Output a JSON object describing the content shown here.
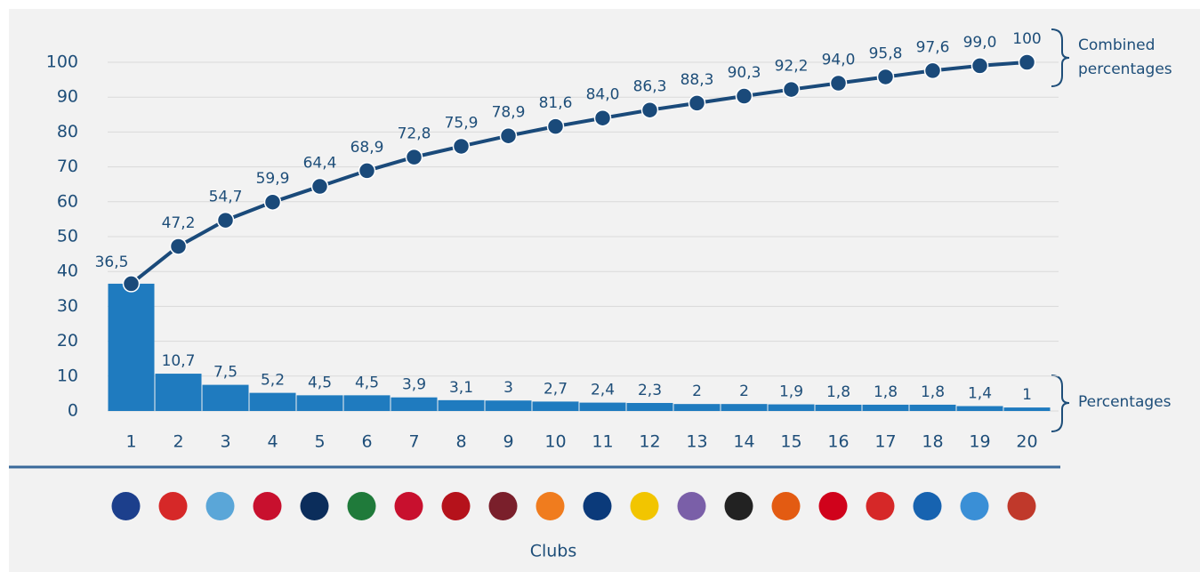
{
  "chart_data": {
    "type": "bar_line",
    "categories": [
      "1",
      "2",
      "3",
      "4",
      "5",
      "6",
      "7",
      "8",
      "9",
      "10",
      "11",
      "12",
      "13",
      "14",
      "15",
      "16",
      "17",
      "18",
      "19",
      "20"
    ],
    "series": [
      {
        "name": "Percentages",
        "type": "bar",
        "color": "#1f7bbf",
        "values": [
          36.5,
          10.7,
          7.5,
          5.2,
          4.5,
          4.5,
          3.9,
          3.1,
          3,
          2.7,
          2.4,
          2.3,
          2,
          2,
          1.9,
          1.8,
          1.8,
          1.8,
          1.4,
          1
        ],
        "value_labels": [
          null,
          "10,7",
          "7,5",
          "5,2",
          "4,5",
          "4,5",
          "3,9",
          "3,1",
          "3",
          "2,7",
          "2,4",
          "2,3",
          "2",
          "2",
          "1,9",
          "1,8",
          "1,8",
          "1,8",
          "1,4",
          "1"
        ]
      },
      {
        "name": "Combined percentages",
        "type": "line",
        "color": "#1a4a7a",
        "values": [
          36.5,
          47.2,
          54.7,
          59.9,
          64.4,
          68.9,
          72.8,
          75.9,
          78.9,
          81.6,
          84.0,
          86.3,
          88.3,
          90.3,
          92.2,
          94.0,
          95.8,
          97.6,
          99.0,
          100
        ],
        "value_labels": [
          "36,5",
          "47,2",
          "54,7",
          "59,9",
          "64,4",
          "68,9",
          "72,8",
          "75,9",
          "78,9",
          "81,6",
          "84,0",
          "86,3",
          "88,3",
          "90,3",
          "92,2",
          "94,0",
          "95,8",
          "97,6",
          "99,0",
          "100"
        ]
      }
    ],
    "xlabel": "Clubs",
    "ylim": [
      0,
      100
    ],
    "yticks": [
      0,
      10,
      20,
      30,
      40,
      50,
      60,
      70,
      80,
      90,
      100
    ],
    "grid": true
  }
}
